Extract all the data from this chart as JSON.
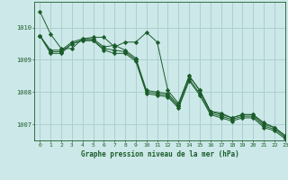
{
  "background_color": "#cce8e8",
  "grid_color": "#aacccc",
  "line_color": "#1a5c2a",
  "text_color": "#1a5c2a",
  "xlabel": "Graphe pression niveau de la mer (hPa)",
  "xlim": [
    -0.5,
    23
  ],
  "ylim": [
    1006.5,
    1010.8
  ],
  "yticks": [
    1007,
    1008,
    1009,
    1010
  ],
  "xticks": [
    0,
    1,
    2,
    3,
    4,
    5,
    6,
    7,
    8,
    9,
    10,
    11,
    12,
    13,
    14,
    15,
    16,
    17,
    18,
    19,
    20,
    21,
    22,
    23
  ],
  "series": [
    [
      1010.5,
      1009.8,
      1009.35,
      1009.35,
      1009.65,
      1009.7,
      1009.7,
      1009.4,
      1009.55,
      1009.55,
      1009.85,
      1009.55,
      1008.05,
      1007.65,
      1008.5,
      1008.05,
      1007.4,
      1007.35,
      1007.2,
      1007.3,
      1007.3,
      1007.05,
      1006.9,
      1006.65
    ],
    [
      1009.75,
      1009.3,
      1009.3,
      1009.55,
      1009.65,
      1009.65,
      1009.4,
      1009.45,
      1009.3,
      1009.05,
      1008.05,
      1008.0,
      1007.95,
      1007.6,
      1008.5,
      1008.05,
      1007.4,
      1007.3,
      1007.2,
      1007.3,
      1007.3,
      1007.0,
      1006.9,
      1006.65
    ],
    [
      1009.75,
      1009.25,
      1009.25,
      1009.5,
      1009.6,
      1009.6,
      1009.35,
      1009.3,
      1009.25,
      1009.0,
      1008.0,
      1007.95,
      1007.9,
      1007.55,
      1008.4,
      1007.95,
      1007.35,
      1007.25,
      1007.15,
      1007.25,
      1007.25,
      1006.95,
      1006.85,
      1006.6
    ],
    [
      1009.75,
      1009.2,
      1009.2,
      1009.5,
      1009.6,
      1009.6,
      1009.3,
      1009.2,
      1009.2,
      1008.95,
      1007.95,
      1007.9,
      1007.85,
      1007.5,
      1008.35,
      1007.9,
      1007.3,
      1007.2,
      1007.1,
      1007.2,
      1007.2,
      1006.9,
      1006.8,
      1006.55
    ]
  ],
  "figsize": [
    3.2,
    2.0
  ],
  "dpi": 100
}
